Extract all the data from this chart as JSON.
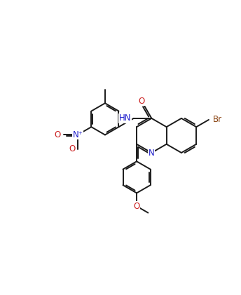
{
  "bg_color": "#ffffff",
  "line_color": "#1a1a1a",
  "line_width": 1.4,
  "figsize": [
    3.44,
    4.21
  ],
  "dpi": 100,
  "font_size": 8.5,
  "colors": {
    "N": "#2020cc",
    "O": "#cc2020",
    "Br": "#8b4513",
    "C": "#1a1a1a"
  },
  "xlim": [
    0,
    10
  ],
  "ylim": [
    0,
    12
  ]
}
